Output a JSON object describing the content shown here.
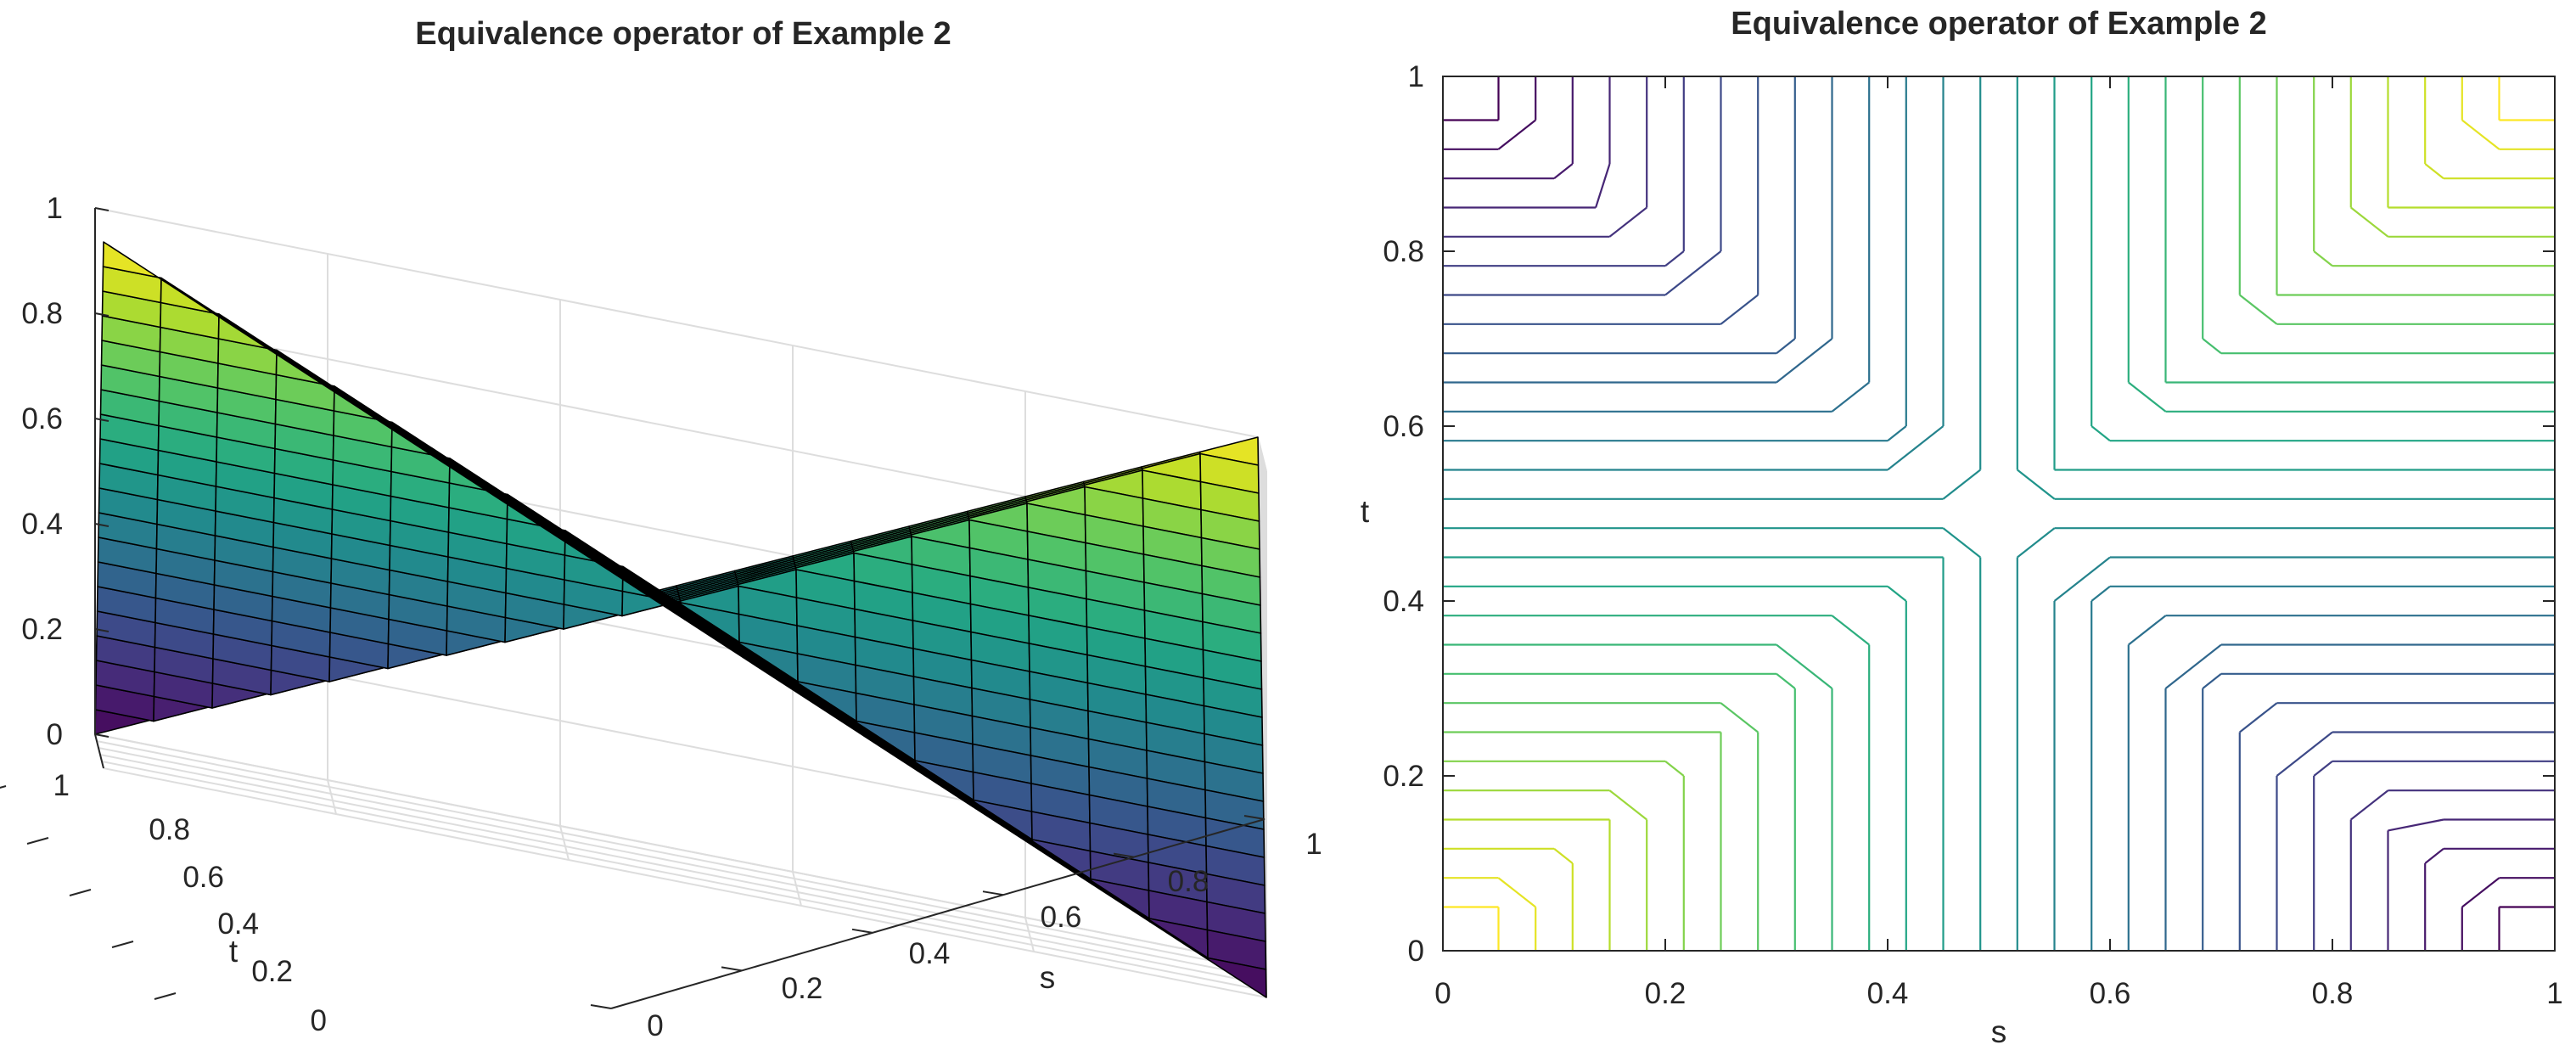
{
  "chart_data": [
    {
      "type": "surface",
      "title": "Equivalence operator of Example 2",
      "xlabel": "s",
      "ylabel": "t",
      "zlabel": "",
      "xlim": [
        0,
        1
      ],
      "ylim": [
        0,
        1
      ],
      "zlim": [
        0,
        1
      ],
      "x_ticks": [
        "0",
        "0.2",
        "0.4",
        "0.6",
        "0.8",
        "1"
      ],
      "y_ticks": [
        "0",
        "0.2",
        "0.4",
        "0.6",
        "0.8",
        "1"
      ],
      "z_ticks": [
        "0",
        "0.2",
        "0.4",
        "0.6",
        "0.8",
        "1"
      ],
      "grid": true,
      "mesh_step": 0.05,
      "colormap": "viridis",
      "function": "z(s,t) = max(min(s,t), min(1-s,1-t))",
      "sample_points": [
        {
          "s": 0,
          "t": 0,
          "z": 1
        },
        {
          "s": 1,
          "t": 1,
          "z": 1
        },
        {
          "s": 1,
          "t": 0,
          "z": 0
        },
        {
          "s": 0,
          "t": 1,
          "z": 0
        },
        {
          "s": 0.5,
          "t": 0.5,
          "z": 0.5
        },
        {
          "s": 0,
          "t": 0.5,
          "z": 0.5
        },
        {
          "s": 0.5,
          "t": 0,
          "z": 0.5
        },
        {
          "s": 1,
          "t": 0.5,
          "z": 0.5
        },
        {
          "s": 0.5,
          "t": 1,
          "z": 0.5
        }
      ]
    },
    {
      "type": "contour",
      "title": "Equivalence operator of Example 2",
      "xlabel": "s",
      "ylabel": "t",
      "xlim": [
        0,
        1
      ],
      "ylim": [
        0,
        1
      ],
      "x_ticks": [
        "0",
        "0.2",
        "0.4",
        "0.6",
        "0.8",
        "1"
      ],
      "y_ticks": [
        "0",
        "0.2",
        "0.4",
        "0.6",
        "0.8",
        "1"
      ],
      "grid": false,
      "colormap": "viridis",
      "mesh_step": 0.05,
      "level_count": 28,
      "level_range": [
        0.05,
        0.95
      ],
      "function": "z(s,t) = max(min(s,t), min(1-s,1-t))"
    }
  ]
}
